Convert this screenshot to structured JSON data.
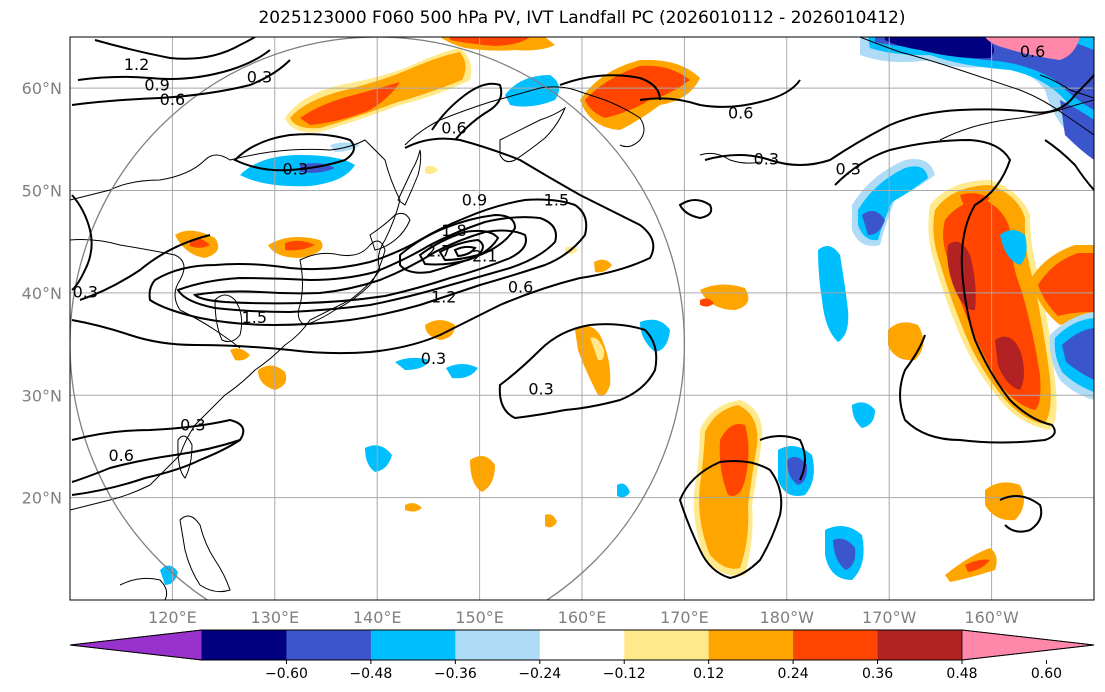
{
  "title": "2025123000 F060 500 hPa PV, IVT Landfall PC (2026010112 - 2026010412)",
  "map": {
    "lon_range": [
      110,
      210
    ],
    "lat_range": [
      10,
      65
    ],
    "gridlines": true,
    "lat_labels": [
      {
        "lat": 20,
        "label": "20°N"
      },
      {
        "lat": 30,
        "label": "30°N"
      },
      {
        "lat": 40,
        "label": "40°N"
      },
      {
        "lat": 50,
        "label": "50°N"
      },
      {
        "lat": 60,
        "label": "60°N"
      }
    ],
    "lon_labels": [
      {
        "lon": 120,
        "label": "120°E"
      },
      {
        "lon": 130,
        "label": "130°E"
      },
      {
        "lon": 140,
        "label": "140°E"
      },
      {
        "lon": 150,
        "label": "150°E"
      },
      {
        "lon": 160,
        "label": "160°E"
      },
      {
        "lon": 170,
        "label": "170°E"
      },
      {
        "lon": 180,
        "label": "180°W"
      },
      {
        "lon": 190,
        "label": "170°W"
      },
      {
        "lon": 200,
        "label": "160°W"
      }
    ],
    "circle": {
      "center_lon": 140,
      "center_lat": 35,
      "radius_deg": 30,
      "color": "#808080"
    },
    "contour_labels": [
      {
        "text": "1.2",
        "lon": 116.5,
        "lat": 62.2
      },
      {
        "text": "0.9",
        "lon": 118.5,
        "lat": 60.2
      },
      {
        "text": "0.6",
        "lon": 120,
        "lat": 58.8
      },
      {
        "text": "0.3",
        "lon": 128.5,
        "lat": 61
      },
      {
        "text": "0.3",
        "lon": 132,
        "lat": 52
      },
      {
        "text": "0.6",
        "lon": 147.5,
        "lat": 56
      },
      {
        "text": "0.6",
        "lon": 175.5,
        "lat": 57.5
      },
      {
        "text": "0.3",
        "lon": 178,
        "lat": 53
      },
      {
        "text": "0.3",
        "lon": 186,
        "lat": 52
      },
      {
        "text": "0.6",
        "lon": 204,
        "lat": 63.5
      },
      {
        "text": "0.9",
        "lon": 149.5,
        "lat": 49
      },
      {
        "text": "1.5",
        "lon": 157.5,
        "lat": 49
      },
      {
        "text": "1.8",
        "lon": 147.5,
        "lat": 46
      },
      {
        "text": "2.7",
        "lon": 146,
        "lat": 44
      },
      {
        "text": "2.1",
        "lon": 150.5,
        "lat": 43.5
      },
      {
        "text": "1.2",
        "lon": 146.5,
        "lat": 39.5
      },
      {
        "text": "0.6",
        "lon": 154,
        "lat": 40.5
      },
      {
        "text": "1.5",
        "lon": 128,
        "lat": 37.5
      },
      {
        "text": "0.3",
        "lon": 111.5,
        "lat": 40
      },
      {
        "text": "0.3",
        "lon": 145.5,
        "lat": 33.5
      },
      {
        "text": "0.3",
        "lon": 156,
        "lat": 30.5
      },
      {
        "text": "0.3",
        "lon": 122,
        "lat": 27
      },
      {
        "text": "0.6",
        "lon": 115,
        "lat": 24
      }
    ]
  },
  "colorbar": {
    "ticks": [
      "−0.60",
      "−0.48",
      "−0.36",
      "−0.24",
      "−0.12",
      "0.12",
      "0.24",
      "0.36",
      "0.48",
      "0.60"
    ],
    "colors": [
      "#9932cc",
      "#000080",
      "#3b55cc",
      "#00bfff",
      "#aedcf7",
      "#ffffff",
      "#ffe98a",
      "#ffa500",
      "#ff4500",
      "#b22222",
      "#ff88aa"
    ]
  },
  "palette": {
    "neg_light": "#aedcf7",
    "neg_mid": "#00bfff",
    "neg_strong": "#3b55cc",
    "neg_max": "#000080",
    "pos_light": "#ffe98a",
    "pos_mid": "#ffa500",
    "pos_strong": "#ff4500",
    "pos_max": "#b22222",
    "land_line": "#000000",
    "grid": "#a9a9a9",
    "label_gray": "#808080"
  }
}
